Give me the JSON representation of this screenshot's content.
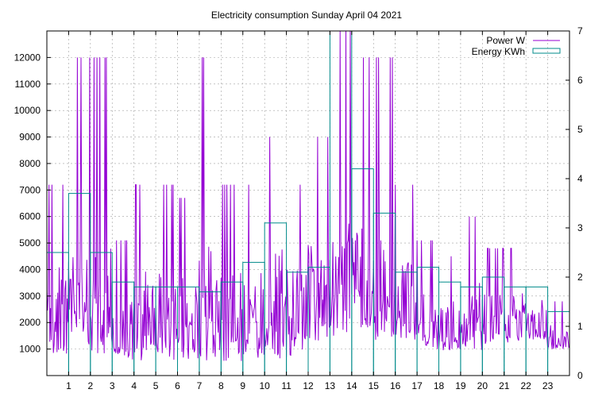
{
  "chart_data": {
    "type": "line",
    "title": "Electricity consumption Sunday April 04 2021",
    "x_ticks": [
      "1",
      "2",
      "3",
      "4",
      "5",
      "6",
      "7",
      "8",
      "9",
      "10",
      "11",
      "12",
      "13",
      "14",
      "15",
      "16",
      "17",
      "18",
      "19",
      "20",
      "21",
      "22",
      "23"
    ],
    "xlim": [
      0,
      24
    ],
    "y_left_ticks": [
      "1000",
      "2000",
      "3000",
      "4000",
      "5000",
      "6000",
      "7000",
      "8000",
      "9000",
      "10000",
      "11000",
      "12000"
    ],
    "ylim_left": [
      0,
      13000
    ],
    "y_right_ticks": [
      "0",
      "1",
      "2",
      "3",
      "4",
      "5",
      "6",
      "7"
    ],
    "ylim_right": [
      0,
      7
    ],
    "grid": true,
    "legend_position": "top-right",
    "series": [
      {
        "name": "Power W",
        "axis": "left",
        "color": "#9400d3",
        "style": "line",
        "hourly_low": [
          700,
          900,
          700,
          550,
          550,
          500,
          550,
          550,
          550,
          600,
          650,
          700,
          1300,
          1400,
          1800,
          1300,
          1300,
          1000,
          950,
          950,
          1200,
          1250,
          1300,
          1000
        ],
        "hourly_high": [
          7200,
          12000,
          12000,
          5100,
          7200,
          7200,
          6700,
          12000,
          7200,
          7200,
          9000,
          7200,
          9000,
          13000,
          12000,
          12000,
          7200,
          5100,
          4500,
          6000,
          4800,
          4800,
          4500,
          2800
        ]
      },
      {
        "name": "Energy KWh",
        "axis": "right",
        "color": "#008b8b",
        "style": "steps",
        "hours": [
          0,
          1,
          2,
          3,
          4,
          5,
          6,
          7,
          8,
          9,
          10,
          11,
          12,
          13,
          14,
          15,
          16,
          17,
          18,
          19,
          20,
          21,
          22,
          23
        ],
        "values": [
          2.5,
          3.7,
          2.5,
          1.9,
          1.8,
          1.8,
          1.8,
          1.7,
          1.9,
          2.3,
          3.1,
          2.1,
          2.2,
          7.0,
          4.2,
          3.3,
          2.1,
          2.2,
          1.9,
          1.8,
          2.0,
          1.8,
          1.8,
          1.3
        ]
      }
    ]
  }
}
